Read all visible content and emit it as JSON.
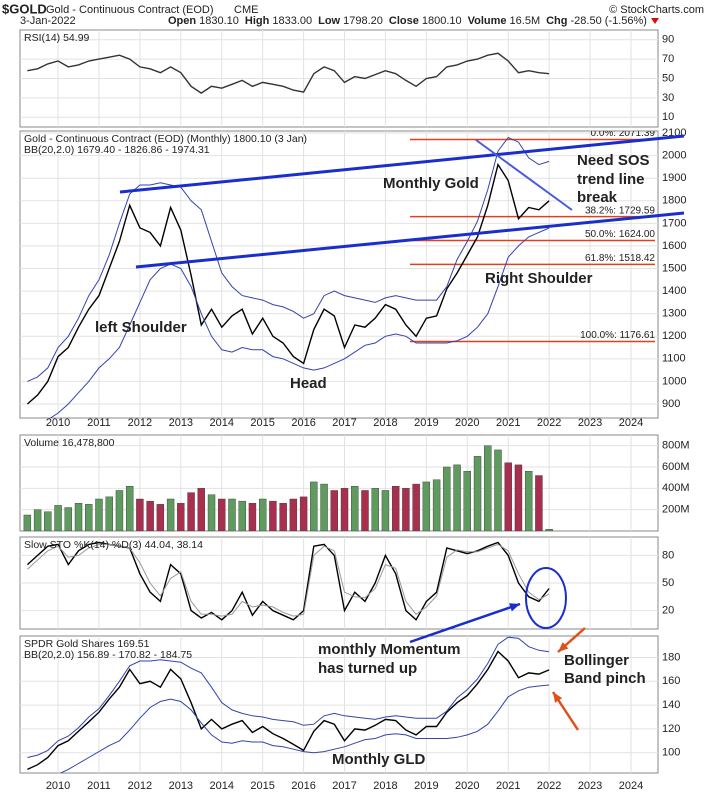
{
  "header": {
    "symbol": "$GOLD",
    "name": "Gold - Continuous Contract (EOD)",
    "exchange": "CME",
    "date": "3-Jan-2022",
    "source": "© StockCharts.com",
    "quote": [
      {
        "label": "Open",
        "value": "1830.10"
      },
      {
        "label": "High",
        "value": "1833.00"
      },
      {
        "label": "Low",
        "value": "1798.20"
      },
      {
        "label": "Close",
        "value": "1800.10"
      },
      {
        "label": "Volume",
        "value": "16.5M"
      },
      {
        "label": "Chg",
        "value": "-28.50 (-1.56%)"
      }
    ]
  },
  "chart_data": {
    "type": "multi-panel",
    "x": [
      2009.25,
      2009.5,
      2009.75,
      2010,
      2010.25,
      2010.5,
      2010.75,
      2011,
      2011.25,
      2011.5,
      2011.75,
      2012,
      2012.25,
      2012.5,
      2012.75,
      2013,
      2013.25,
      2013.5,
      2013.75,
      2014,
      2014.25,
      2014.5,
      2014.75,
      2015,
      2015.25,
      2015.5,
      2015.75,
      2016,
      2016.25,
      2016.5,
      2016.75,
      2017,
      2017.25,
      2017.5,
      2017.75,
      2018,
      2018.25,
      2018.5,
      2018.75,
      2019,
      2019.25,
      2019.5,
      2019.75,
      2020,
      2020.25,
      2020.5,
      2020.75,
      2021,
      2021.25,
      2021.5,
      2021.75,
      2022
    ],
    "xlim": [
      2009.07,
      2024.66
    ],
    "xticks": [
      2010,
      2011,
      2012,
      2013,
      2014,
      2015,
      2016,
      2017,
      2018,
      2019,
      2020,
      2021,
      2022,
      2023,
      2024
    ],
    "panels": [
      {
        "type": "line",
        "label": "RSI(14) 54.99",
        "ylim": [
          0,
          100
        ],
        "yticks": [
          10,
          30,
          50,
          70,
          90
        ],
        "series": [
          {
            "color": "#333333",
            "values": [
              58,
              60,
              65,
              68,
              62,
              64,
              68,
              70,
              72,
              74,
              70,
              62,
              60,
              56,
              62,
              56,
              42,
              35,
              42,
              40,
              44,
              48,
              42,
              46,
              44,
              42,
              38,
              36,
              55,
              62,
              58,
              46,
              52,
              50,
              54,
              58,
              55,
              48,
              42,
              50,
              52,
              62,
              64,
              68,
              70,
              74,
              76,
              68,
              56,
              58,
              56,
              54.99
            ]
          }
        ]
      },
      {
        "type": "line",
        "label": "Gold - Continuous Contract (EOD) (Monthly) 1800.10 (3 Jan)",
        "sublabel": "BB(20,2.0) 1679.40 - 1826.86 - 1974.31",
        "ylim": [
          838,
          2109
        ],
        "yticks": [
          900,
          1000,
          1100,
          1200,
          1300,
          1400,
          1500,
          1600,
          1700,
          1800,
          1900,
          2000,
          2100
        ],
        "series": [
          {
            "color": "#000000",
            "values": [
              900,
              940,
              1000,
              1110,
              1150,
              1240,
              1320,
              1380,
              1500,
              1620,
              1780,
              1680,
              1660,
              1600,
              1770,
              1670,
              1470,
              1250,
              1320,
              1240,
              1290,
              1320,
              1210,
              1280,
              1200,
              1170,
              1110,
              1080,
              1230,
              1320,
              1290,
              1150,
              1250,
              1240,
              1280,
              1340,
              1320,
              1250,
              1200,
              1280,
              1290,
              1410,
              1480,
              1560,
              1640,
              1780,
              1960,
              1890,
              1720,
              1770,
              1760,
              1800.1
            ]
          },
          {
            "color": "#3344aa",
            "values": [
              1000,
              1020,
              1060,
              1150,
              1200,
              1280,
              1380,
              1450,
              1560,
              1700,
              1830,
              1870,
              1870,
              1880,
              1870,
              1860,
              1800,
              1760,
              1620,
              1480,
              1420,
              1380,
              1370,
              1360,
              1340,
              1330,
              1310,
              1280,
              1300,
              1380,
              1400,
              1380,
              1370,
              1360,
              1350,
              1370,
              1380,
              1370,
              1360,
              1360,
              1360,
              1420,
              1540,
              1620,
              1710,
              1850,
              2020,
              2080,
              2060,
              1990,
              1960,
              1974.31
            ]
          },
          {
            "color": "#3344aa",
            "values": [
              820,
              820,
              830,
              860,
              900,
              950,
              1000,
              1060,
              1100,
              1150,
              1250,
              1350,
              1450,
              1500,
              1520,
              1500,
              1420,
              1300,
              1200,
              1140,
              1130,
              1150,
              1140,
              1140,
              1110,
              1100,
              1080,
              1060,
              1050,
              1060,
              1080,
              1100,
              1130,
              1160,
              1170,
              1200,
              1210,
              1200,
              1170,
              1170,
              1170,
              1170,
              1180,
              1200,
              1240,
              1300,
              1420,
              1550,
              1600,
              1640,
              1660,
              1679.4
            ]
          }
        ],
        "fib_levels": [
          {
            "value": 2071.39,
            "label": "0.0%: 2071.39"
          },
          {
            "value": 1729.59,
            "label": "38.2%: 1729.59"
          },
          {
            "value": 1624.0,
            "label": "50.0%: 1624.00"
          },
          {
            "value": 1518.42,
            "label": "61.8%: 1518.42"
          },
          {
            "value": 1176.61,
            "label": "100.0%: 1176.61"
          }
        ],
        "fib_color": "#e04020",
        "annotations": [
          {
            "text": "Monthly Gold",
            "color": "#1a2ecc"
          },
          {
            "text": "Need SOS",
            "color": "#1a2ecc"
          },
          {
            "text": "trend line",
            "color": "#1a2ecc"
          },
          {
            "text": "break",
            "color": "#1a2ecc"
          },
          {
            "text": "left Shoulder",
            "color": "#1a2ecc"
          },
          {
            "text": "Head",
            "color": "#1a2ecc"
          },
          {
            "text": "Right Shoulder",
            "color": "#1a2ecc"
          }
        ]
      },
      {
        "type": "bar",
        "label": "Volume 16,478,800",
        "ylim": [
          0,
          900
        ],
        "yticks": [
          {
            "value": 200,
            "label": "200M"
          },
          {
            "value": 400,
            "label": "400M"
          },
          {
            "value": 600,
            "label": "600M"
          },
          {
            "value": 800,
            "label": "800M"
          }
        ],
        "up_color": "#5f9a5f",
        "down_color": "#a8304e",
        "values": [
          150,
          200,
          180,
          240,
          220,
          260,
          250,
          300,
          320,
          380,
          420,
          300,
          280,
          250,
          300,
          260,
          360,
          400,
          340,
          300,
          300,
          280,
          260,
          300,
          280,
          260,
          300,
          320,
          460,
          440,
          380,
          400,
          420,
          380,
          400,
          380,
          420,
          400,
          440,
          460,
          480,
          600,
          620,
          560,
          700,
          800,
          760,
          640,
          620,
          560,
          520,
          16.4788
        ]
      },
      {
        "type": "line",
        "label": "Slow STO %K(14) %D(3) 44.04, 38.14",
        "ylim": [
          0,
          100
        ],
        "yticks": [
          20,
          50,
          80
        ],
        "series": [
          {
            "color": "#000000",
            "values": [
              70,
              80,
              90,
              92,
              70,
              85,
              92,
              94,
              92,
              90,
              88,
              60,
              40,
              30,
              70,
              60,
              20,
              12,
              18,
              10,
              20,
              40,
              15,
              30,
              20,
              15,
              10,
              20,
              90,
              92,
              80,
              20,
              40,
              30,
              50,
              80,
              60,
              20,
              10,
              30,
              40,
              88,
              85,
              82,
              85,
              90,
              94,
              80,
              50,
              35,
              30,
              44.04
            ]
          },
          {
            "color": "#999999",
            "values": [
              65,
              75,
              85,
              90,
              78,
              80,
              88,
              92,
              92,
              90,
              88,
              72,
              50,
              36,
              55,
              62,
              30,
              16,
              16,
              14,
              16,
              30,
              24,
              26,
              24,
              18,
              14,
              16,
              80,
              90,
              85,
              40,
              35,
              34,
              44,
              70,
              66,
              30,
              16,
              24,
              36,
              78,
              86,
              84,
              84,
              88,
              92,
              85,
              60,
              40,
              32,
              38.14
            ]
          }
        ]
      },
      {
        "type": "line",
        "label": "SPDR Gold Shares 169.51",
        "sublabel": "BB(20,2.0) 156.89 - 170.82 - 184.75",
        "ylim": [
          83,
          198
        ],
        "yticks": [
          100,
          120,
          140,
          160,
          180
        ],
        "series": [
          {
            "color": "#000000",
            "values": [
              86,
              90,
              96,
              106,
              110,
              118,
              126,
              134,
              145,
              155,
              170,
              158,
              160,
              155,
              170,
              162,
              142,
              120,
              128,
              120,
              124,
              127,
              117,
              122,
              116,
              112,
              107,
              102,
              118,
              127,
              124,
              110,
              120,
              119,
              123,
              128,
              127,
              119,
              115,
              122,
              122,
              134,
              142,
              148,
              158,
              170,
              185,
              177,
              163,
              167,
              166,
              169.51
            ]
          },
          {
            "color": "#3344aa",
            "values": [
              96,
              98,
              102,
              110,
              114,
              121,
              130,
              137,
              148,
              160,
              173,
              177,
              177,
              178,
              177,
              176,
              171,
              167,
              155,
              142,
              136,
              133,
              131,
              130,
              128,
              127,
              126,
              123,
              124,
              131,
              133,
              131,
              130,
              129,
              128,
              130,
              131,
              130,
              129,
              129,
              129,
              135,
              146,
              153,
              162,
              175,
              191,
              197,
              196,
              189,
              186,
              184.75
            ]
          },
          {
            "color": "#3344aa",
            "values": [
              78,
              78,
              79,
              82,
              86,
              91,
              96,
              101,
              106,
              110,
              119,
              129,
              138,
              143,
              145,
              143,
              136,
              125,
              115,
              109,
              108,
              110,
              109,
              109,
              106,
              105,
              103,
              101,
              100,
              101,
              103,
              105,
              108,
              111,
              112,
              115,
              116,
              115,
              112,
              112,
              112,
              112,
              113,
              115,
              118,
              124,
              135,
              147,
              152,
              155,
              156,
              156.89
            ]
          }
        ],
        "annotations": [
          {
            "text": "monthly Momentum",
            "color": "#1a2ecc"
          },
          {
            "text": "has turned up",
            "color": "#1a2ecc"
          },
          {
            "text": "Monthly GLD",
            "color": "#1a2ecc"
          },
          {
            "text": "Bollinger",
            "color": "#e0501a"
          },
          {
            "text": "Band pinch",
            "color": "#e0501a"
          }
        ]
      }
    ]
  }
}
